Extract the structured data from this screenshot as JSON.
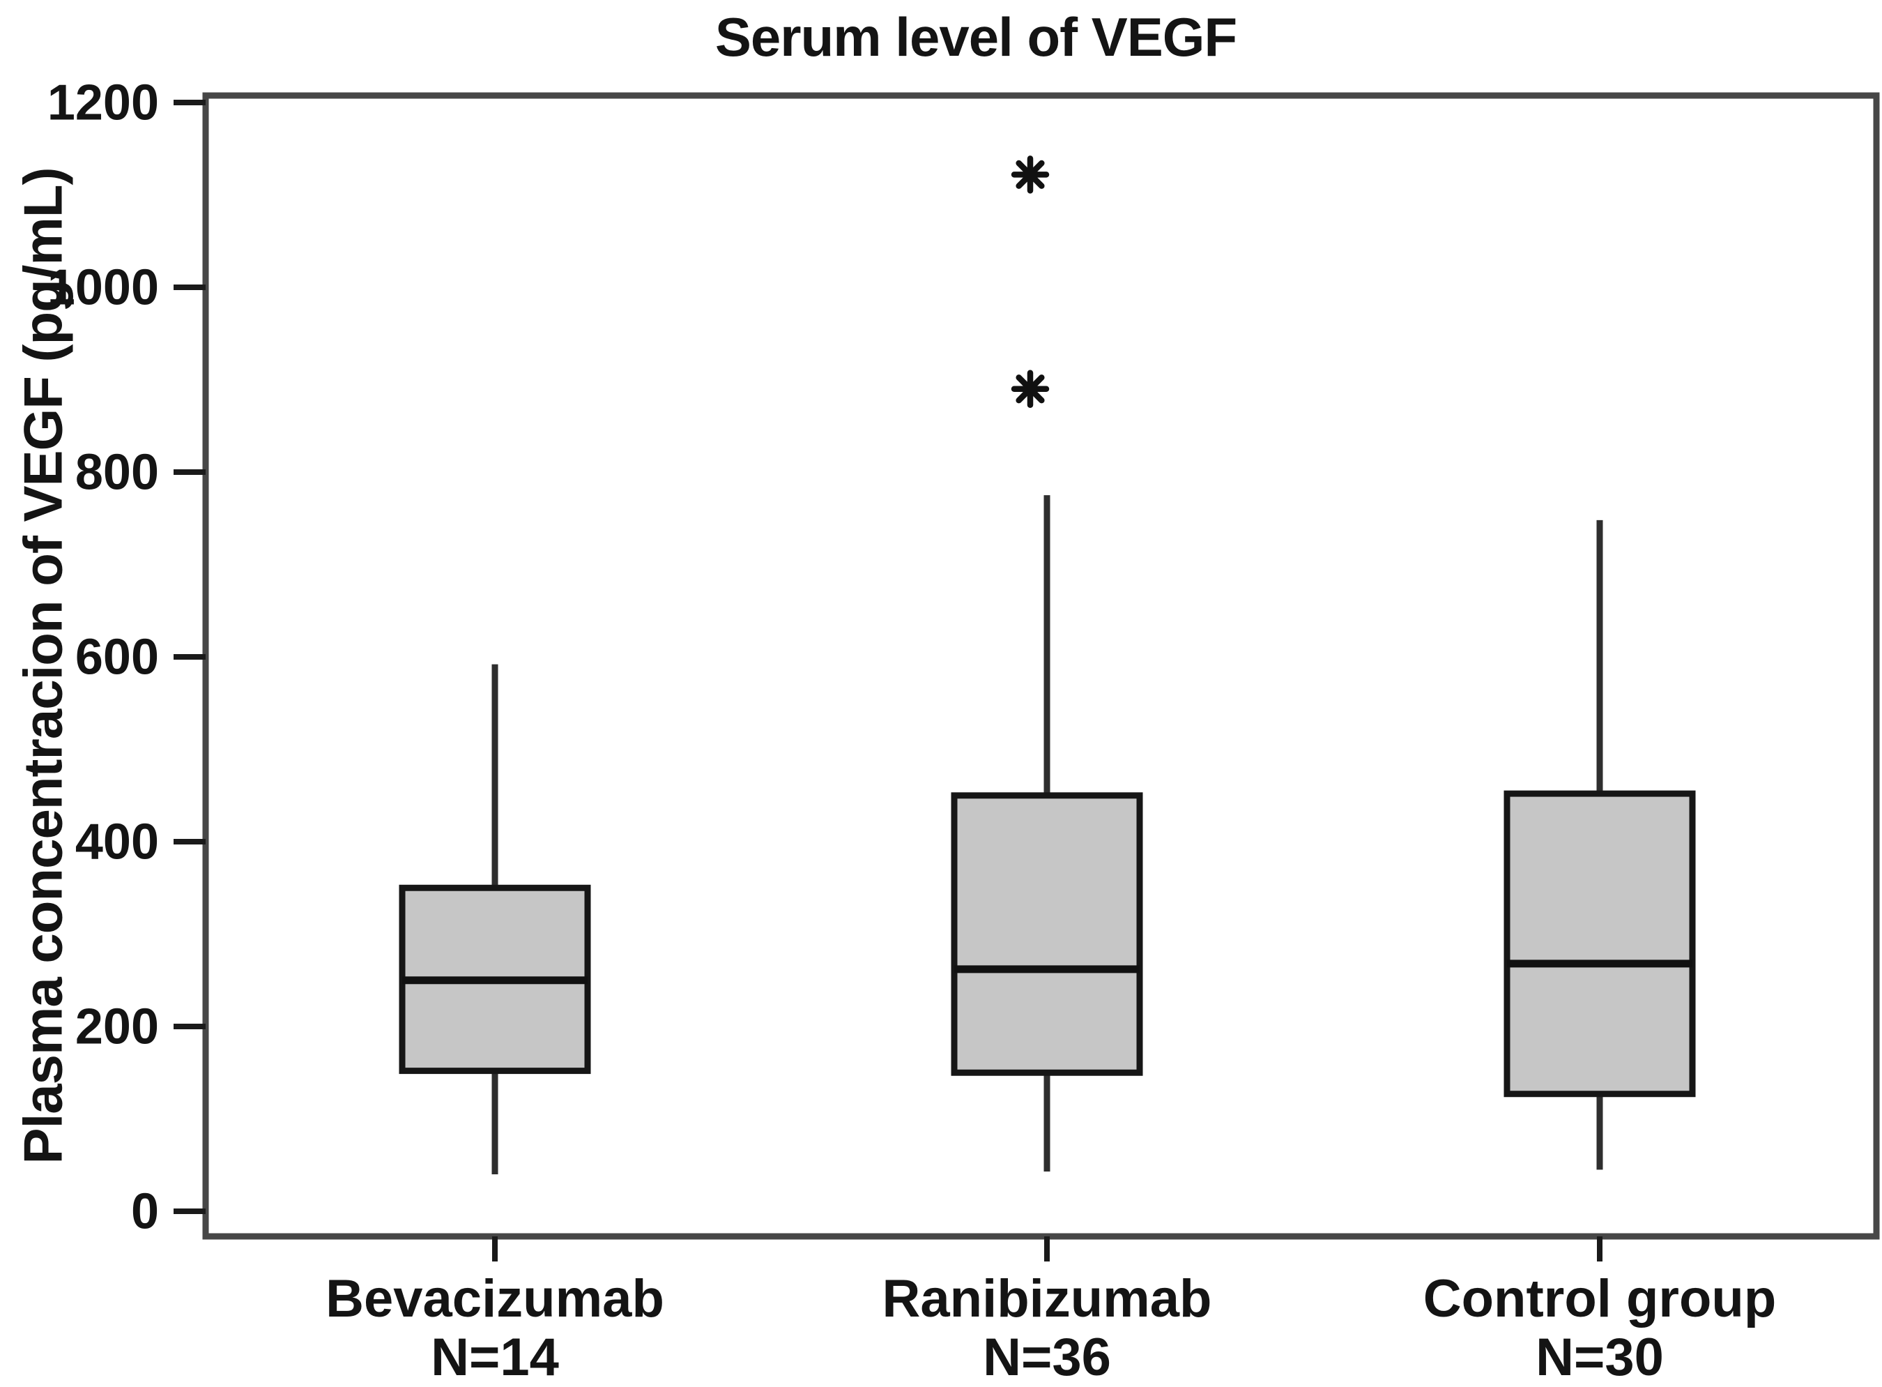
{
  "figure": {
    "title": "Serum level of VEGF",
    "y_axis_label": "Plasma concentracion of VEGF (pg/mL)"
  },
  "chart_data": {
    "type": "boxplot",
    "title": "Serum level of VEGF",
    "ylabel": "Plasma concentracion of VEGF (pg/mL)",
    "xlabel": "",
    "ylim": [
      0,
      1200
    ],
    "yticks": [
      0,
      200,
      400,
      600,
      800,
      1000,
      1200
    ],
    "grid": false,
    "legend": "none",
    "outlier_marker": "*",
    "groups": [
      {
        "label": "Bevacizumab",
        "n_label": "N=14",
        "n": 14,
        "whisker_low": 40,
        "q1": 152,
        "median": 250,
        "q3": 350,
        "whisker_high": 592,
        "outliers": []
      },
      {
        "label": "Ranibizumab",
        "n_label": "N=36",
        "n": 36,
        "whisker_low": 43,
        "q1": 150,
        "median": 262,
        "q3": 450,
        "whisker_high": 775,
        "outliers": [
          890,
          1122
        ]
      },
      {
        "label": "Control group",
        "n_label": "N=30",
        "n": 30,
        "whisker_low": 45,
        "q1": 127,
        "median": 268,
        "q3": 452,
        "whisker_high": 748,
        "outliers": []
      }
    ],
    "colors": {
      "box_fill": "#c6c6c6",
      "box_border": "#161616",
      "median": "#111111",
      "whisker": "#2e2e2e",
      "frame": "#474747",
      "tick": "#1a1a1a",
      "text": "#141414",
      "background": "#ffffff"
    }
  }
}
